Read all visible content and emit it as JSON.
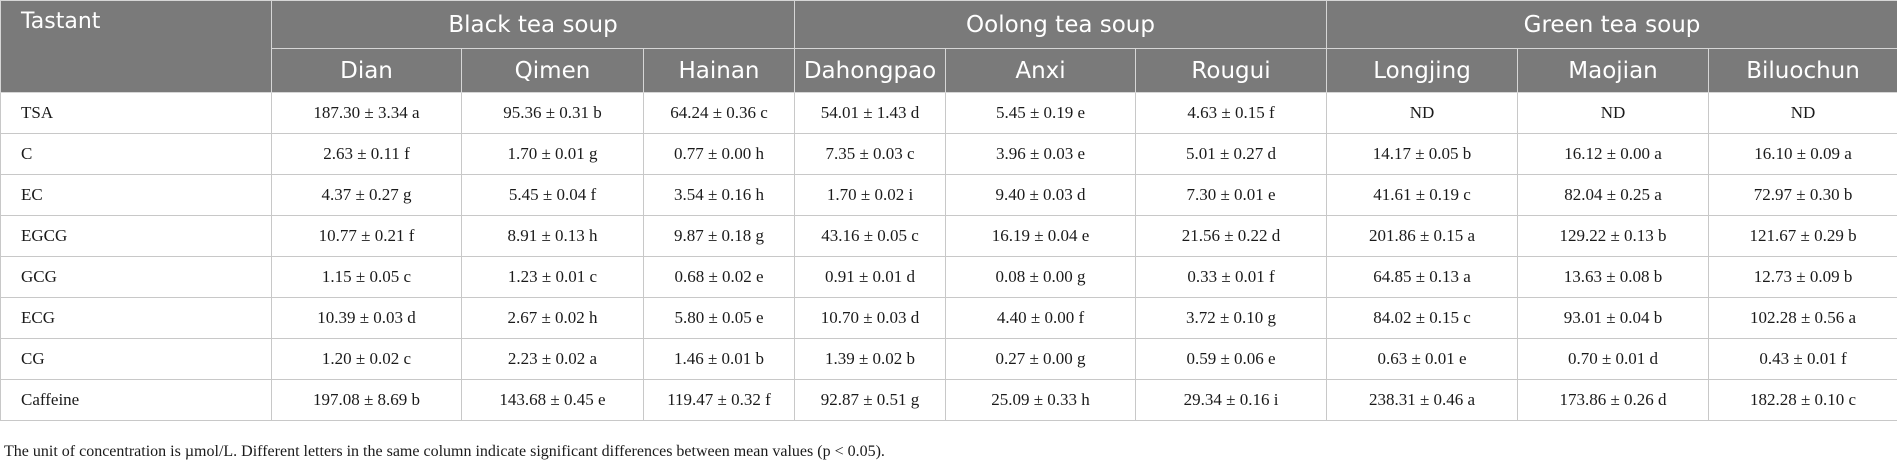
{
  "table": {
    "tastant_header": "Tastant",
    "groups": [
      {
        "label": "Black tea soup",
        "span": 3
      },
      {
        "label": "Oolong tea soup",
        "span": 3
      },
      {
        "label": "Green tea soup",
        "span": 3
      }
    ],
    "columns": [
      "Dian",
      "Qimen",
      "Hainan",
      "Dahongpao",
      "Anxi",
      "Rougui",
      "Longjing",
      "Maojian",
      "Biluochun"
    ],
    "rows": [
      {
        "name": "TSA",
        "values": [
          "187.30 ± 3.34 a",
          "95.36 ± 0.31 b",
          "64.24 ± 0.36 c",
          "54.01 ± 1.43 d",
          "5.45 ± 0.19 e",
          "4.63 ± 0.15 f",
          "ND",
          "ND",
          "ND"
        ]
      },
      {
        "name": "C",
        "values": [
          "2.63 ± 0.11 f",
          "1.70 ± 0.01 g",
          "0.77 ± 0.00 h",
          "7.35 ± 0.03 c",
          "3.96 ± 0.03 e",
          "5.01 ± 0.27 d",
          "14.17 ± 0.05 b",
          "16.12 ± 0.00 a",
          "16.10 ± 0.09 a"
        ]
      },
      {
        "name": "EC",
        "values": [
          "4.37 ± 0.27 g",
          "5.45 ± 0.04 f",
          "3.54 ± 0.16 h",
          "1.70 ± 0.02 i",
          "9.40 ± 0.03 d",
          "7.30 ± 0.01 e",
          "41.61 ± 0.19 c",
          "82.04 ± 0.25 a",
          "72.97 ± 0.30 b"
        ]
      },
      {
        "name": "EGCG",
        "values": [
          "10.77 ± 0.21 f",
          "8.91 ± 0.13 h",
          "9.87 ± 0.18 g",
          "43.16 ± 0.05 c",
          "16.19 ± 0.04 e",
          "21.56 ± 0.22 d",
          "201.86 ± 0.15 a",
          "129.22 ± 0.13 b",
          "121.67 ± 0.29 b"
        ]
      },
      {
        "name": "GCG",
        "values": [
          "1.15 ± 0.05 c",
          "1.23 ± 0.01 c",
          "0.68 ± 0.02 e",
          "0.91 ± 0.01 d",
          "0.08 ± 0.00 g",
          "0.33 ± 0.01 f",
          "64.85 ± 0.13 a",
          "13.63 ± 0.08 b",
          "12.73 ± 0.09 b"
        ]
      },
      {
        "name": "ECG",
        "values": [
          "10.39 ± 0.03 d",
          "2.67 ± 0.02 h",
          "5.80 ± 0.05 e",
          "10.70 ± 0.03 d",
          "4.40 ± 0.00 f",
          "3.72 ± 0.10 g",
          "84.02 ± 0.15 c",
          "93.01 ± 0.04 b",
          "102.28 ± 0.56 a"
        ]
      },
      {
        "name": "CG",
        "values": [
          "1.20 ± 0.02 c",
          "2.23 ± 0.02 a",
          "1.46 ± 0.01 b",
          "1.39 ± 0.02 b",
          "0.27 ± 0.00 g",
          "0.59 ± 0.06 e",
          "0.63 ± 0.01 e",
          "0.70 ± 0.01 d",
          "0.43 ± 0.01 f"
        ]
      },
      {
        "name": "Caffeine",
        "values": [
          "197.08 ± 8.69 b",
          "143.68 ± 0.45 e",
          "119.47 ± 0.32 f",
          "92.87 ± 0.51 g",
          "25.09 ± 0.33 h",
          "29.34 ± 0.16 i",
          "238.31 ± 0.46 a",
          "173.86 ± 0.26 d",
          "182.28 ± 0.10 c"
        ]
      }
    ],
    "footnote": "The unit of concentration is µmol/L. Different letters in the same column indicate significant differences between mean values (p < 0.05)."
  },
  "colors": {
    "header_bg": "#7a7a7a",
    "header_text": "#ffffff",
    "grid": "#c8c8c8"
  }
}
